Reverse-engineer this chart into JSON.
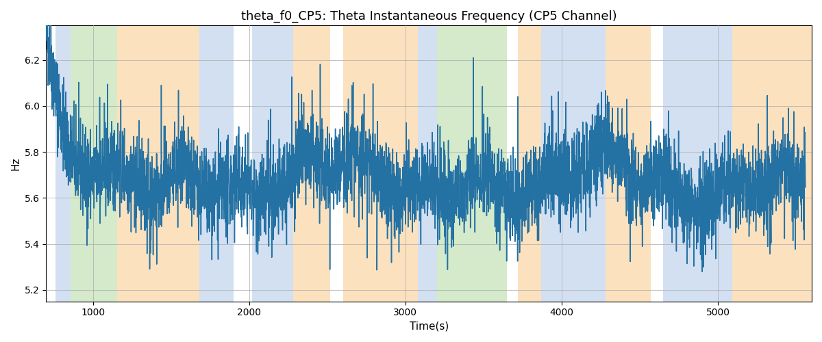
{
  "title": "theta_f0_CP5: Theta Instantaneous Frequency (CP5 Channel)",
  "xlabel": "Time(s)",
  "ylabel": "Hz",
  "ylim": [
    5.15,
    6.35
  ],
  "xlim": [
    700,
    5600
  ],
  "line_color": "#2471a3",
  "line_width": 1.1,
  "background_color": "#ffffff",
  "grid_color": "#aaaaaa",
  "bands": [
    {
      "xmin": 760,
      "xmax": 855,
      "color": "#adc8e8",
      "alpha": 0.55
    },
    {
      "xmin": 855,
      "xmax": 1155,
      "color": "#b2d9a0",
      "alpha": 0.55
    },
    {
      "xmin": 1155,
      "xmax": 1680,
      "color": "#f8c98a",
      "alpha": 0.55
    },
    {
      "xmin": 1680,
      "xmax": 1900,
      "color": "#adc8e8",
      "alpha": 0.55
    },
    {
      "xmin": 2020,
      "xmax": 2280,
      "color": "#adc8e8",
      "alpha": 0.55
    },
    {
      "xmin": 2280,
      "xmax": 2520,
      "color": "#f8c98a",
      "alpha": 0.55
    },
    {
      "xmin": 2600,
      "xmax": 3080,
      "color": "#f8c98a",
      "alpha": 0.55
    },
    {
      "xmin": 3080,
      "xmax": 3200,
      "color": "#adc8e8",
      "alpha": 0.55
    },
    {
      "xmin": 3200,
      "xmax": 3650,
      "color": "#b2d9a0",
      "alpha": 0.55
    },
    {
      "xmin": 3720,
      "xmax": 3870,
      "color": "#f8c98a",
      "alpha": 0.55
    },
    {
      "xmin": 3870,
      "xmax": 4280,
      "color": "#adc8e8",
      "alpha": 0.55
    },
    {
      "xmin": 4280,
      "xmax": 4570,
      "color": "#f8c98a",
      "alpha": 0.55
    },
    {
      "xmin": 4650,
      "xmax": 5090,
      "color": "#adc8e8",
      "alpha": 0.55
    },
    {
      "xmin": 5090,
      "xmax": 5600,
      "color": "#f8c98a",
      "alpha": 0.55
    }
  ],
  "seed": 42,
  "n_points": 4860,
  "x_start": 700,
  "x_end": 5560,
  "mean_freq": 5.68,
  "noise_std": 0.095,
  "spike_prob": 0.012,
  "spike_mag_up": 0.42,
  "spike_mag_down": 0.35,
  "title_fontsize": 13,
  "label_fontsize": 11,
  "tick_fontsize": 10
}
